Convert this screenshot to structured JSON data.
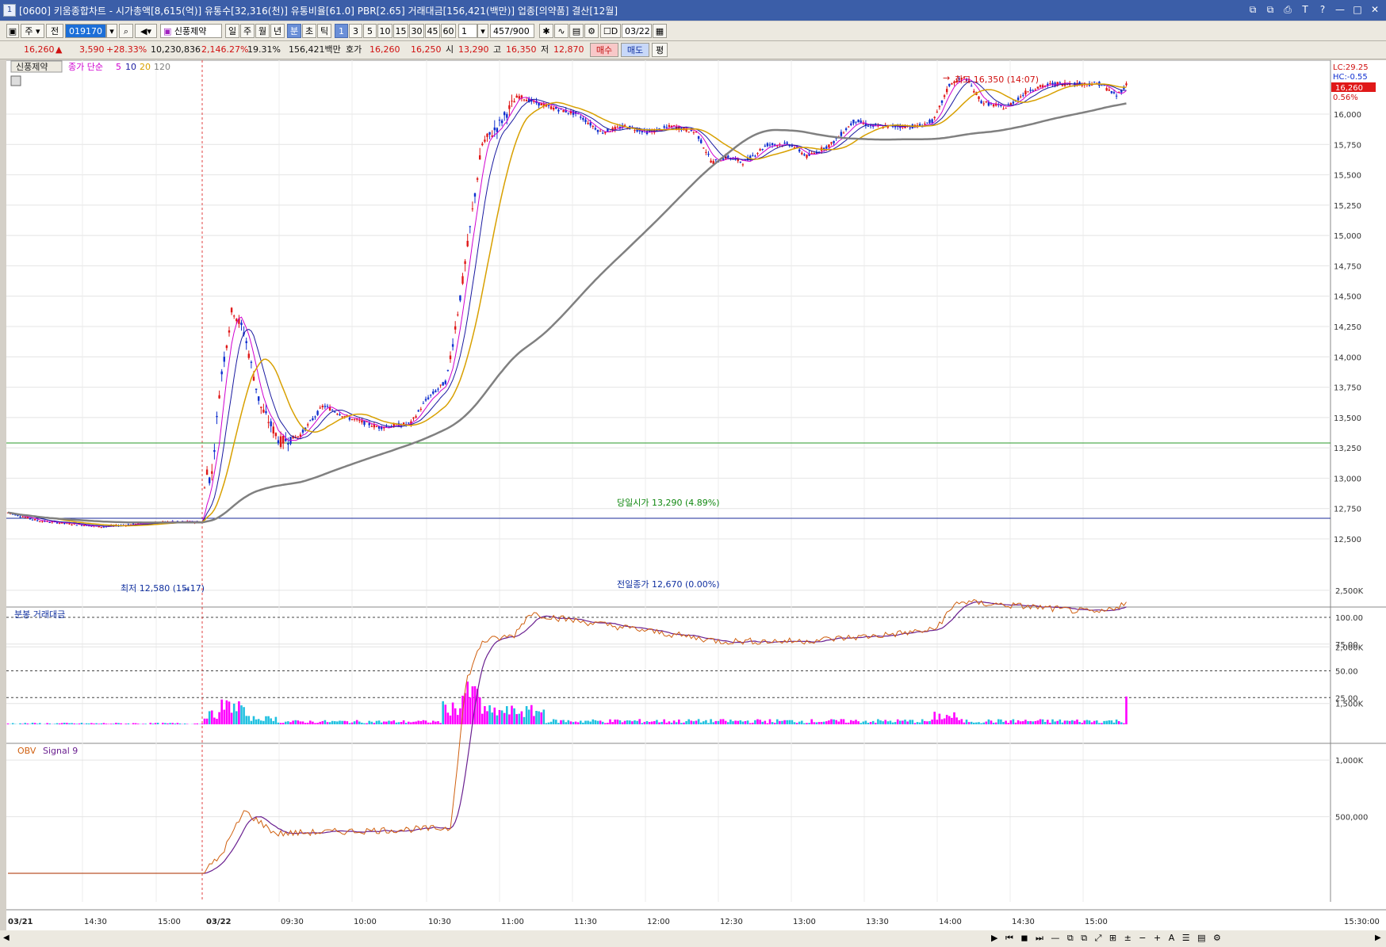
{
  "window": {
    "title": "[0600] 키움종합차트 - 시가총액[8,615(억)] 유통수[32,316(천)] 유통비율[61.0] PBR[2.65] 거래대금[156,421(백만)] 업종[의약품] 결산[12월]",
    "icon": "1",
    "controls": [
      "⧉",
      "⧉",
      "⎙",
      "T",
      "?",
      "—",
      "□",
      "✕"
    ]
  },
  "toolbar": {
    "market": "주",
    "mode": "전",
    "code": "019170",
    "name": "신풍제약",
    "periods": [
      "일",
      "주",
      "월",
      "년",
      "분",
      "초",
      "틱"
    ],
    "active_period": "분",
    "intervals": [
      "1",
      "3",
      "5",
      "10",
      "15",
      "30",
      "45",
      "60"
    ],
    "active_interval": "1",
    "count": "1",
    "range": "457/900",
    "date_label": "D",
    "date": "03/22"
  },
  "quote": {
    "price": "16,260",
    "arrow": "▲",
    "change": "3,590",
    "change_pct": "+28.33%",
    "volume": "10,230,836",
    "vol_ratio": "2,146.27%",
    "turnover": "19.31%",
    "amount": "156,421백만",
    "hoga_label": "호가",
    "ask": "16,260",
    "bid": "16,250",
    "open_label": "시",
    "open": "13,290",
    "high_label": "고",
    "high": "16,350",
    "low_label": "저",
    "low": "12,870",
    "buy": "매수",
    "sell": "매도",
    "avg": "평"
  },
  "price_panel": {
    "stock_tag": "신풍제약",
    "legend_prefix": "종가 단순",
    "ma": [
      {
        "label": "5",
        "color": "#d000d0"
      },
      {
        "label": "10",
        "color": "#1a1aa0"
      },
      {
        "label": "20",
        "color": "#d8a000"
      },
      {
        "label": "120",
        "color": "#808080"
      }
    ],
    "lc": "LC:29.25",
    "hc": "HC:-0.55",
    "current_price": "16,260",
    "current_pct": "0.56%",
    "high_annot": "최고 16,350 (14:07)",
    "low_annot": "최저 12,580 (15:17)",
    "open_line_label": "당일시가 13,290 (4.89%)",
    "prev_close_label": "전일종가 12,670 (0.00%)",
    "y_ticks": [
      "16,000",
      "15,750",
      "15,500",
      "15,250",
      "15,000",
      "14,750",
      "14,500",
      "14,250",
      "14,000",
      "13,750",
      "13,500",
      "13,250",
      "13,000",
      "12,750",
      "12,500"
    ]
  },
  "volume_panel": {
    "title": "분봉 거래대금",
    "y_ticks": [
      "100.00",
      "75.00",
      "50.00",
      "25.00"
    ]
  },
  "obv_panel": {
    "title": "OBV",
    "signal": "Signal 9",
    "y_ticks": [
      "2,500K",
      "2,000K",
      "1,500K",
      "1,000K",
      "500,000"
    ]
  },
  "x_axis": {
    "labels": [
      "03/21",
      "14:30",
      "15:00",
      "03/22",
      "09:30",
      "10:00",
      "10:30",
      "11:00",
      "11:30",
      "12:00",
      "12:30",
      "13:00",
      "13:30",
      "14:00",
      "14:30",
      "15:00",
      "15:30:00"
    ]
  },
  "colors": {
    "up": "#e01818",
    "down": "#1030d0",
    "ma5": "#d000d0",
    "ma10": "#1a1aa0",
    "ma20": "#d8a000",
    "ma120": "#808080",
    "obv": "#d06010",
    "signal": "#6a2090",
    "vol_up": "#ff00ff",
    "vol_down": "#20c0e0"
  }
}
